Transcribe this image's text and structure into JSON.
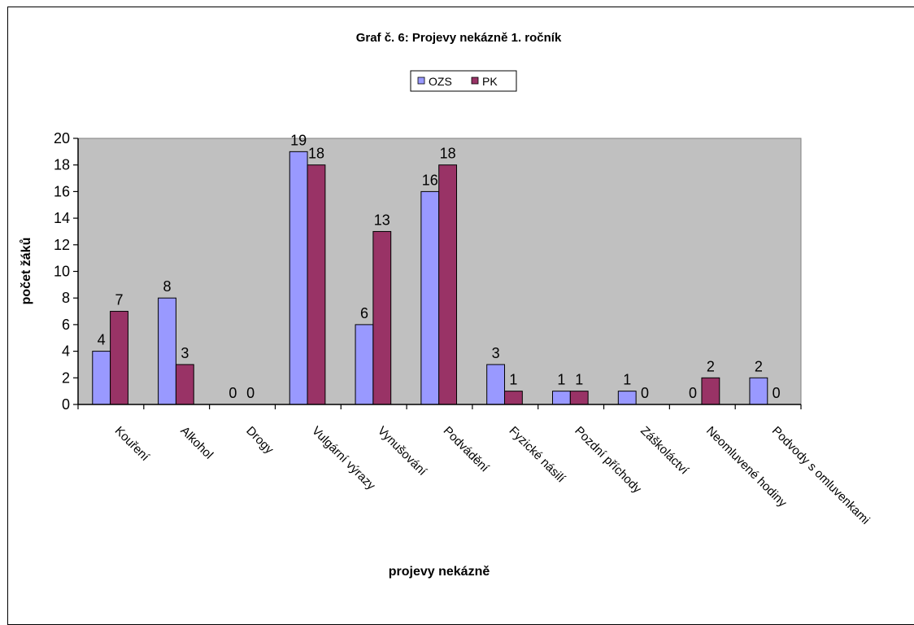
{
  "chart_data": {
    "type": "bar",
    "title": "Graf č. 6: Projevy nekázně 1. ročník",
    "xlabel": "projevy nekázně",
    "ylabel": "počet žáků",
    "ylim": [
      0,
      20
    ],
    "ytick_step": 2,
    "grid": false,
    "legend_position": "top-center",
    "categories": [
      "Kouření",
      "Alkohol",
      "Drogy",
      "Vulgární výrazy",
      "Vynušování",
      "Podvádění",
      "Fyzické násilí",
      "Pozdní příchody",
      "Záškoláctví",
      "Neomluvené hodiny",
      "Podvody s omluvenkami"
    ],
    "series": [
      {
        "name": "OZS",
        "color": "#9999ff",
        "values": [
          4,
          8,
          0,
          19,
          6,
          16,
          3,
          1,
          1,
          0,
          2
        ]
      },
      {
        "name": "PK",
        "color": "#993366",
        "values": [
          7,
          3,
          0,
          18,
          13,
          18,
          1,
          1,
          0,
          2,
          0
        ]
      }
    ],
    "plot_background": "#c0c0c0"
  }
}
